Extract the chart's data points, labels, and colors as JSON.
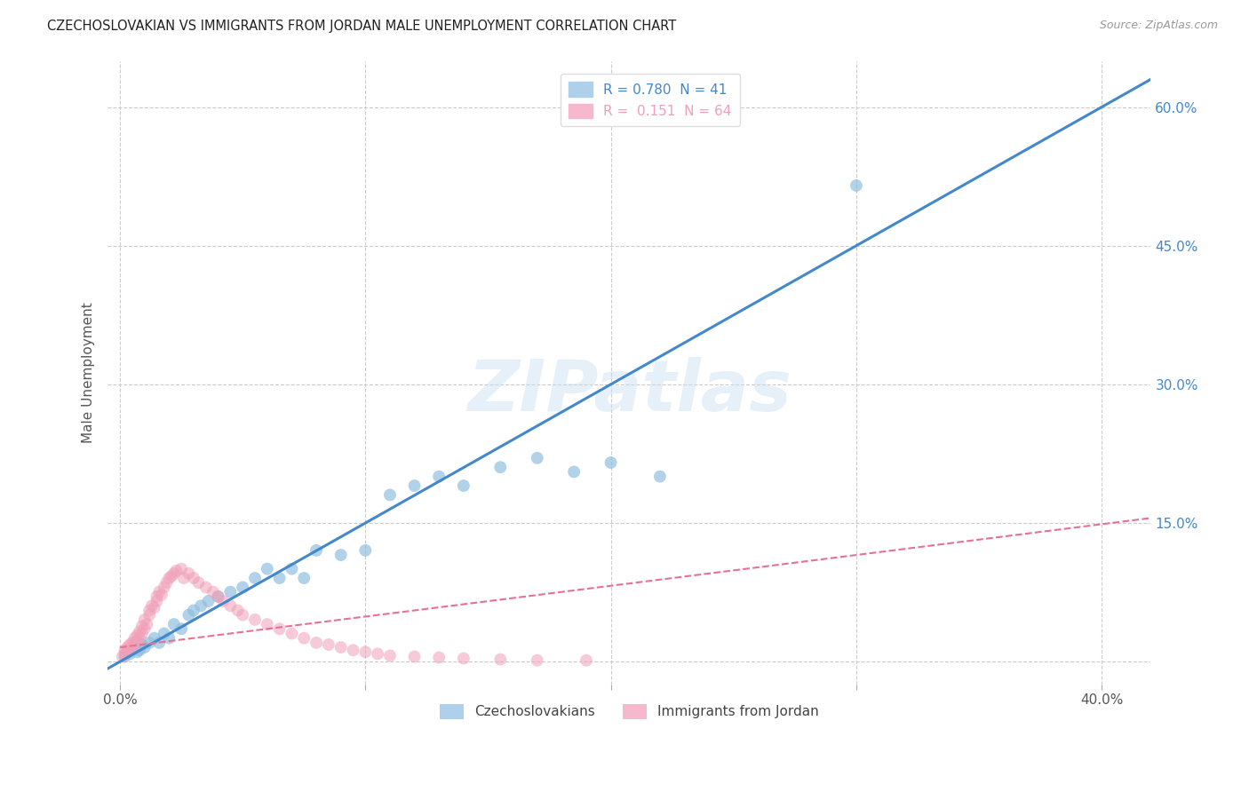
{
  "title": "CZECHOSLOVAKIAN VS IMMIGRANTS FROM JORDAN MALE UNEMPLOYMENT CORRELATION CHART",
  "source": "Source: ZipAtlas.com",
  "ylabel": "Male Unemployment",
  "y_ticks_right": [
    0.0,
    0.15,
    0.3,
    0.45,
    0.6
  ],
  "y_tick_labels_right": [
    "",
    "15.0%",
    "30.0%",
    "45.0%",
    "60.0%"
  ],
  "x_ticks": [
    0.0,
    0.1,
    0.2,
    0.3,
    0.4
  ],
  "x_tick_labels": [
    "0.0%",
    "",
    "",
    "",
    "40.0%"
  ],
  "blue_scatter_x": [
    0.002,
    0.003,
    0.004,
    0.005,
    0.006,
    0.007,
    0.008,
    0.009,
    0.01,
    0.012,
    0.014,
    0.016,
    0.018,
    0.02,
    0.022,
    0.025,
    0.028,
    0.03,
    0.033,
    0.036,
    0.04,
    0.045,
    0.05,
    0.055,
    0.06,
    0.065,
    0.07,
    0.075,
    0.08,
    0.09,
    0.1,
    0.11,
    0.12,
    0.13,
    0.14,
    0.155,
    0.17,
    0.185,
    0.2,
    0.22,
    0.3
  ],
  "blue_scatter_y": [
    0.005,
    0.01,
    0.008,
    0.012,
    0.015,
    0.01,
    0.012,
    0.018,
    0.015,
    0.02,
    0.025,
    0.02,
    0.03,
    0.025,
    0.04,
    0.035,
    0.05,
    0.055,
    0.06,
    0.065,
    0.07,
    0.075,
    0.08,
    0.09,
    0.1,
    0.09,
    0.1,
    0.09,
    0.12,
    0.115,
    0.12,
    0.18,
    0.19,
    0.2,
    0.19,
    0.21,
    0.22,
    0.205,
    0.215,
    0.2,
    0.515
  ],
  "pink_scatter_x": [
    0.001,
    0.002,
    0.002,
    0.003,
    0.003,
    0.004,
    0.004,
    0.005,
    0.005,
    0.006,
    0.006,
    0.007,
    0.007,
    0.008,
    0.008,
    0.009,
    0.009,
    0.01,
    0.01,
    0.011,
    0.012,
    0.012,
    0.013,
    0.014,
    0.015,
    0.015,
    0.016,
    0.017,
    0.018,
    0.019,
    0.02,
    0.021,
    0.022,
    0.023,
    0.025,
    0.026,
    0.028,
    0.03,
    0.032,
    0.035,
    0.038,
    0.04,
    0.042,
    0.045,
    0.048,
    0.05,
    0.055,
    0.06,
    0.065,
    0.07,
    0.075,
    0.08,
    0.085,
    0.09,
    0.095,
    0.1,
    0.105,
    0.11,
    0.12,
    0.13,
    0.14,
    0.155,
    0.17,
    0.19
  ],
  "pink_scatter_y": [
    0.005,
    0.008,
    0.012,
    0.01,
    0.015,
    0.012,
    0.018,
    0.015,
    0.02,
    0.018,
    0.025,
    0.022,
    0.028,
    0.025,
    0.032,
    0.03,
    0.038,
    0.035,
    0.045,
    0.04,
    0.05,
    0.055,
    0.06,
    0.058,
    0.065,
    0.07,
    0.075,
    0.072,
    0.08,
    0.085,
    0.09,
    0.092,
    0.095,
    0.098,
    0.1,
    0.09,
    0.095,
    0.09,
    0.085,
    0.08,
    0.075,
    0.07,
    0.065,
    0.06,
    0.055,
    0.05,
    0.045,
    0.04,
    0.035,
    0.03,
    0.025,
    0.02,
    0.018,
    0.015,
    0.012,
    0.01,
    0.008,
    0.006,
    0.005,
    0.004,
    0.003,
    0.002,
    0.001,
    0.001
  ],
  "blue_line_x": [
    -0.005,
    0.42
  ],
  "blue_line_y": [
    -0.008,
    0.63
  ],
  "pink_line_x": [
    0.0,
    0.42
  ],
  "pink_line_y": [
    0.015,
    0.155
  ],
  "blue_color": "#90bfe0",
  "pink_color": "#f0a0b8",
  "blue_line_color": "#4488cc",
  "pink_line_color": "#e87090",
  "watermark": "ZIPatlas",
  "background_color": "#ffffff",
  "grid_color": "#cccccc",
  "xlim": [
    -0.005,
    0.42
  ],
  "ylim": [
    -0.025,
    0.65
  ],
  "legend_labels_bottom": [
    "Czechoslovakians",
    "Immigrants from Jordan"
  ]
}
